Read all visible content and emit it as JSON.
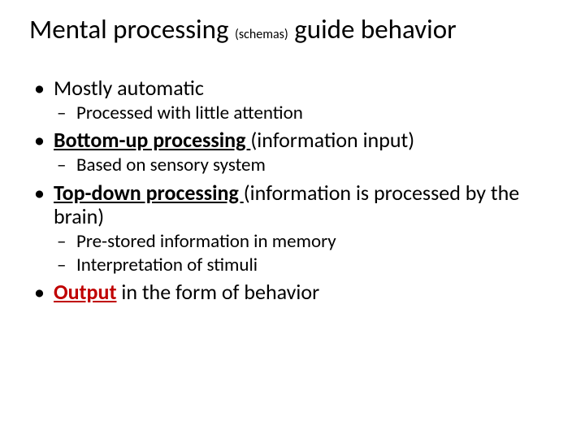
{
  "title": {
    "part1": "Mental processing ",
    "small": "(schemas)",
    "part2": " guide behavior"
  },
  "bullets": [
    {
      "runs": [
        {
          "text": "Mostly automatic"
        }
      ],
      "sub": [
        {
          "text": "Processed with little attention"
        }
      ]
    },
    {
      "runs": [
        {
          "text": "Bottom-up processing ",
          "bold": true,
          "under": true
        },
        {
          "text": "(information input)"
        }
      ],
      "sub": [
        {
          "text": "Based on sensory system"
        }
      ]
    },
    {
      "runs": [
        {
          "text": "Top-down processing ",
          "bold": true,
          "under": true
        },
        {
          "text": "(information is processed by the brain)"
        }
      ],
      "sub": [
        {
          "text": "Pre-stored information in memory"
        },
        {
          "text": "Interpretation of stimuli"
        }
      ]
    },
    {
      "runs": [
        {
          "text": "Output",
          "bold": true,
          "under": true,
          "red": true
        },
        {
          "text": " in the form of behavior"
        }
      ],
      "sub": []
    }
  ],
  "colors": {
    "text": "#000000",
    "accent_red": "#c00000",
    "background": "#ffffff"
  },
  "fontsizes": {
    "title": 33,
    "title_small": 16,
    "level1": 26,
    "level2": 23
  }
}
